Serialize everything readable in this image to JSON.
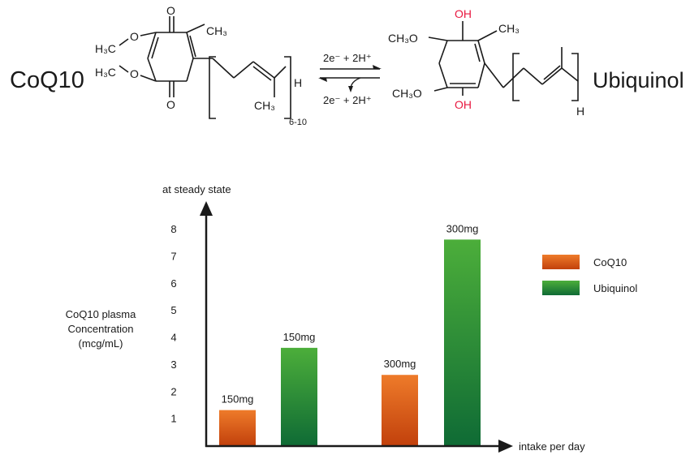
{
  "reaction": {
    "left_name": "CoQ10",
    "right_name": "Ubiquinol",
    "forward_label": "2e⁻ + 2H⁺",
    "reverse_label": "2e⁻ + 2H⁺",
    "left": {
      "methoxy_1": "H₃C",
      "methoxy_2": "H₃C",
      "o_atom_1": "O",
      "o_atom_2": "O",
      "oxo_top": "O",
      "oxo_bottom": "O",
      "methyl_ring": "CH₃",
      "methyl_chain": "CH₃",
      "chain_end": "H",
      "repeat": "6-10"
    },
    "right": {
      "hydroxyl_top": "OH",
      "hydroxyl_bottom": "OH",
      "methoxy_top": "CH₃O",
      "methoxy_bottom": "CH₃O",
      "methyl_ring": "CH₃",
      "chain_end": "H"
    }
  },
  "colors": {
    "coq10_top": "#ee7b2a",
    "coq10_bottom": "#c2410c",
    "ubiquinol_top": "#4cae3a",
    "ubiquinol_bottom": "#0f6b35",
    "hydroxyl": "#e8173f",
    "ink": "#1a1a1a"
  },
  "chart_data": {
    "type": "bar",
    "title": "",
    "ylabel_top": "at steady state",
    "ylabel": [
      "CoQ10 plasma",
      "Concentration",
      "(mcg/mL)"
    ],
    "xlabel": "intake per day",
    "yticks": [
      1,
      2,
      3,
      4,
      5,
      6,
      7,
      8
    ],
    "ylim": [
      0,
      8.6
    ],
    "legend_position": "right",
    "series": [
      {
        "name": "CoQ10",
        "color_key": "coq10"
      },
      {
        "name": "Ubiquinol",
        "color_key": "ubiquinol"
      }
    ],
    "bars": [
      {
        "series": "CoQ10",
        "label": "150mg",
        "value": 1.3
      },
      {
        "series": "Ubiquinol",
        "label": "150mg",
        "value": 3.6
      },
      {
        "series": "CoQ10",
        "label": "300mg",
        "value": 2.6
      },
      {
        "series": "Ubiquinol",
        "label": "300mg",
        "value": 7.6
      }
    ]
  }
}
